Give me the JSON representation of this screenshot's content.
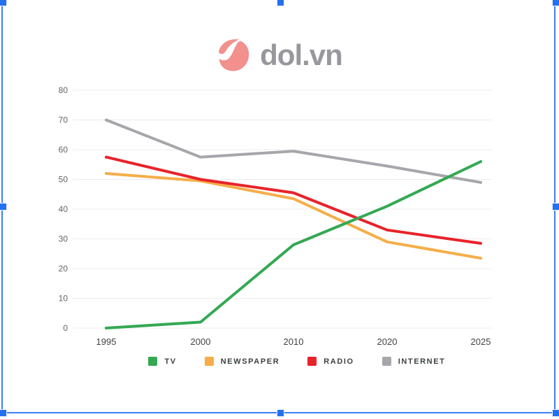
{
  "logo": {
    "text": "dol.vn",
    "mark_color": "#f2908d",
    "text_color": "#97979d"
  },
  "chart_data": {
    "type": "line",
    "categories": [
      "1995",
      "2000",
      "2010",
      "2020",
      "2025"
    ],
    "series": [
      {
        "name": "TV",
        "color": "#34a853",
        "values": [
          0,
          2,
          28,
          41,
          56
        ]
      },
      {
        "name": "NEWSPAPER",
        "color": "#f5ae49",
        "values": [
          52,
          49.5,
          43.5,
          29,
          23.5
        ]
      },
      {
        "name": "RADIO",
        "color": "#e8232a",
        "values": [
          57.5,
          50,
          45.5,
          33,
          28.5
        ]
      },
      {
        "name": "INTERNET",
        "color": "#a6a6ab",
        "values": [
          70,
          57.5,
          59.5,
          54.5,
          49
        ]
      }
    ],
    "z_order": [
      "INTERNET",
      "NEWSPAPER",
      "RADIO",
      "TV"
    ],
    "title": "",
    "xlabel": "",
    "ylabel": "",
    "ylim": [
      0,
      80
    ],
    "yticks": [
      0,
      10,
      20,
      30,
      40,
      50,
      60,
      70,
      80
    ],
    "grid": "horizontal",
    "legend_position": "bottom"
  },
  "colors": {
    "selection_blue": "#2470f0",
    "selection_border": "#3e80f4",
    "gridline": "#ececec"
  }
}
